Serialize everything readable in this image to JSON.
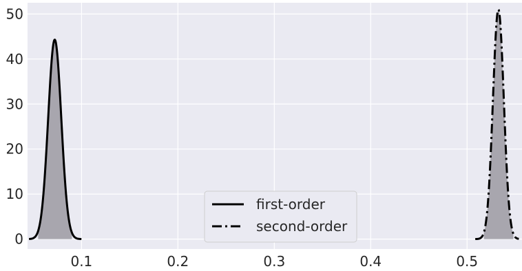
{
  "chart_data": {
    "type": "line",
    "title": "",
    "xlabel": "",
    "ylabel": "",
    "xlim": [
      0.044,
      0.557
    ],
    "ylim": [
      -2.2,
      52.5
    ],
    "xticks": [
      "0.1",
      "0.2",
      "0.3",
      "0.4",
      "0.5"
    ],
    "yticks": [
      "0",
      "10",
      "20",
      "30",
      "40",
      "50"
    ],
    "grid": true,
    "legend": {
      "placement": "bottom-center"
    },
    "colors": {
      "background": "#eaeaf2",
      "grid": "#ffffff",
      "line": "#000000",
      "fill": "#a8a6ae"
    },
    "series": [
      {
        "name": "first-order",
        "style": "solid",
        "mean": 0.0722,
        "peak": 44.3,
        "x_range": [
          0.0455,
          0.0999
        ],
        "shaded_range": [
          0.055,
          0.09
        ]
      },
      {
        "name": "second-order",
        "style": "dashdot",
        "mean": 0.5325,
        "peak": 51.0,
        "x_range": [
          0.5085,
          0.5537
        ],
        "shaded_range": [
          0.5175,
          0.548
        ]
      }
    ]
  }
}
